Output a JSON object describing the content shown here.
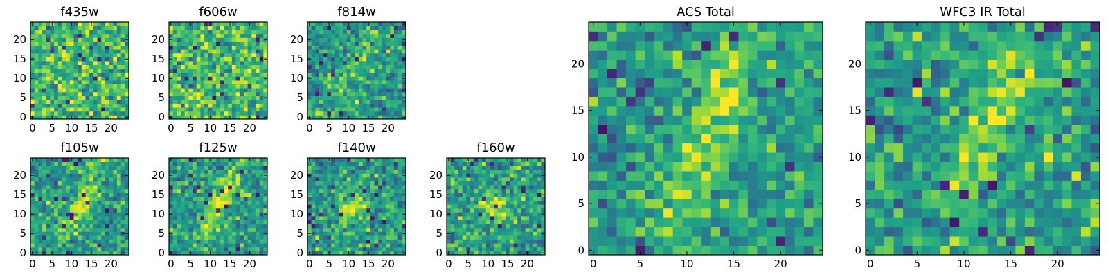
{
  "chart_data": [
    {
      "type": "heatmap",
      "title": "f435w",
      "grid_size": 25,
      "xticks": [
        0,
        5,
        10,
        15,
        20
      ],
      "yticks": [
        0,
        5,
        10,
        15,
        20
      ],
      "xlim": [
        -0.5,
        24.5
      ],
      "ylim": [
        -0.5,
        24.5
      ],
      "colormap": "viridis",
      "structure": "noise",
      "seed": 11
    },
    {
      "type": "heatmap",
      "title": "f606w",
      "grid_size": 25,
      "xticks": [
        0,
        5,
        10,
        15,
        20
      ],
      "yticks": [
        0,
        5,
        10,
        15,
        20
      ],
      "xlim": [
        -0.5,
        24.5
      ],
      "ylim": [
        -0.5,
        24.5
      ],
      "colormap": "viridis",
      "structure": "noise",
      "seed": 23
    },
    {
      "type": "heatmap",
      "title": "f814w",
      "grid_size": 25,
      "xticks": [
        0,
        5,
        10,
        15,
        20
      ],
      "yticks": [
        0,
        5,
        10,
        15,
        20
      ],
      "xlim": [
        -0.5,
        24.5
      ],
      "ylim": [
        -0.5,
        24.5
      ],
      "colormap": "viridis",
      "structure": "faint diagonal source",
      "seed": 37
    },
    {
      "type": "heatmap",
      "title": "f105w",
      "grid_size": 25,
      "xticks": [
        0,
        5,
        10,
        15,
        20
      ],
      "yticks": [
        0,
        5,
        10,
        15,
        20
      ],
      "xlim": [
        -0.5,
        24.5
      ],
      "ylim": [
        -0.5,
        24.5
      ],
      "colormap": "viridis",
      "structure": "diagonal source",
      "seed": 41
    },
    {
      "type": "heatmap",
      "title": "f125w",
      "grid_size": 25,
      "xticks": [
        0,
        5,
        10,
        15,
        20
      ],
      "yticks": [
        0,
        5,
        10,
        15,
        20
      ],
      "xlim": [
        -0.5,
        24.5
      ],
      "ylim": [
        -0.5,
        24.5
      ],
      "colormap": "viridis",
      "structure": "diagonal source",
      "seed": 53
    },
    {
      "type": "heatmap",
      "title": "f140w",
      "grid_size": 25,
      "xticks": [
        0,
        5,
        10,
        15,
        20
      ],
      "yticks": [
        0,
        5,
        10,
        15,
        20
      ],
      "xlim": [
        -0.5,
        24.5
      ],
      "ylim": [
        -0.5,
        24.5
      ],
      "colormap": "viridis",
      "structure": "central source",
      "seed": 67
    },
    {
      "type": "heatmap",
      "title": "f160w",
      "grid_size": 25,
      "xticks": [
        0,
        5,
        10,
        15,
        20
      ],
      "yticks": [
        0,
        5,
        10,
        15,
        20
      ],
      "xlim": [
        -0.5,
        24.5
      ],
      "ylim": [
        -0.5,
        24.5
      ],
      "colormap": "viridis",
      "structure": "central source",
      "seed": 79
    },
    {
      "type": "heatmap",
      "title": "ACS Total",
      "grid_size": 25,
      "xticks": [
        0,
        5,
        10,
        15,
        20
      ],
      "yticks": [
        0,
        5,
        10,
        15,
        20
      ],
      "xlim": [
        -0.5,
        24.5
      ],
      "ylim": [
        -0.5,
        24.5
      ],
      "colormap": "viridis",
      "structure": "diagonal source",
      "seed": 97
    },
    {
      "type": "heatmap",
      "title": "WFC3 IR Total",
      "grid_size": 25,
      "xticks": [
        0,
        5,
        10,
        15,
        20
      ],
      "yticks": [
        0,
        5,
        10,
        15,
        20
      ],
      "xlim": [
        -0.5,
        24.5
      ],
      "ylim": [
        -0.5,
        24.5
      ],
      "colormap": "viridis",
      "structure": "diagonal source",
      "seed": 101
    }
  ]
}
